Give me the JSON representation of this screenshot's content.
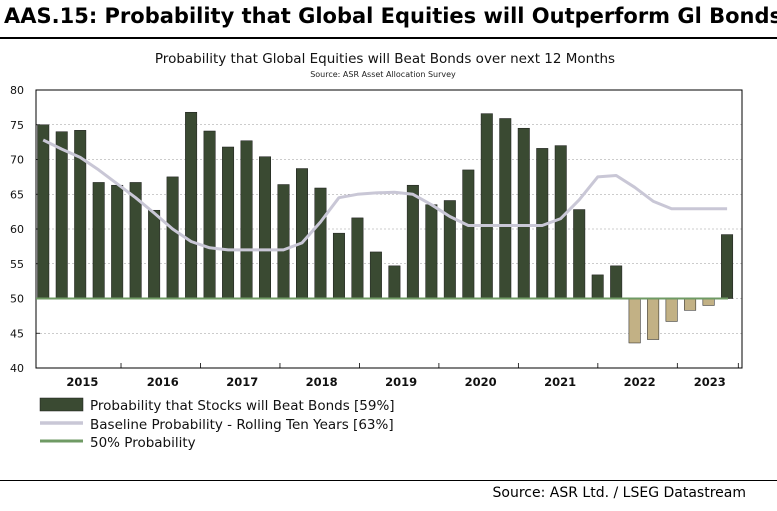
{
  "page": {
    "title": "AAS.15: Probability that Global Equities will Outperform Gl Bonds",
    "source": "Source: ASR Ltd. / LSEG Datastream"
  },
  "colors": {
    "bar_above": "#3a4a32",
    "bar_below": "#c2b185",
    "baseline_line": "#c9c7d6",
    "fifty_line": "#6f9a64",
    "grid": "#999999"
  },
  "chart_data": {
    "type": "bar",
    "title": "Probability that Global Equities will Beat Bonds over next 12 Months",
    "subtitle": "Source: ASR Asset Allocation Survey",
    "xlabel": "",
    "ylabel": "",
    "ylim": [
      40,
      80
    ],
    "yticks": [
      "40",
      "45",
      "50",
      "55",
      "60",
      "65",
      "70",
      "75",
      "80"
    ],
    "year_labels": [
      "2015",
      "2016",
      "2017",
      "2018",
      "2019",
      "2020",
      "2021",
      "2022",
      "2023"
    ],
    "reference_value": 50,
    "grid": true,
    "legend_position": "bottom-left",
    "series": [
      {
        "name": "Probability that Stocks will Beat Bonds  [59%]",
        "kind": "bar",
        "values": [
          75,
          74,
          74.2,
          66.7,
          66.3,
          66.7,
          62.7,
          67.5,
          76.8,
          74.1,
          71.8,
          72.7,
          70.4,
          66.4,
          68.7,
          65.9,
          59.4,
          61.6,
          56.7,
          54.7,
          66.3,
          63.5,
          64.1,
          68.5,
          76.6,
          75.9,
          74.5,
          71.6,
          72,
          62.8,
          53.4,
          54.7,
          43.6,
          44.1,
          46.7,
          48.3,
          49,
          59.2
        ]
      },
      {
        "name": "Baseline Probability - Rolling Ten Years [63%]",
        "kind": "line",
        "values": [
          72.8,
          71.5,
          70.3,
          68.5,
          66.5,
          64.5,
          62.3,
          60,
          58.2,
          57.3,
          57,
          57,
          57,
          57,
          58,
          61,
          64.5,
          65,
          65.2,
          65.3,
          65,
          63.5,
          61.8,
          60.5,
          60.5,
          60.5,
          60.5,
          60.5,
          61.5,
          64.2,
          67.5,
          67.7,
          66,
          64,
          62.9,
          62.9,
          62.9,
          62.9
        ]
      },
      {
        "name": "50% Probability",
        "kind": "line",
        "values": [
          50,
          50,
          50,
          50,
          50,
          50,
          50,
          50,
          50,
          50,
          50,
          50,
          50,
          50,
          50,
          50,
          50,
          50,
          50,
          50,
          50,
          50,
          50,
          50,
          50,
          50,
          50,
          50,
          50,
          50,
          50,
          50,
          50,
          50,
          50,
          50,
          50,
          50
        ]
      }
    ]
  }
}
